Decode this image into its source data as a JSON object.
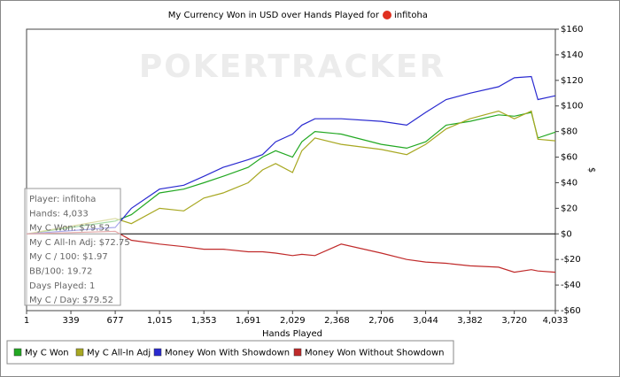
{
  "chart_data": {
    "type": "line",
    "title": "My Currency Won in USD over Hands Played for",
    "player": "infitoha",
    "watermark": "POKERTRACKER",
    "x_label": "Hands Played",
    "y_label": "$",
    "x": [
      1,
      677,
      800,
      1015,
      1200,
      1353,
      1500,
      1691,
      1800,
      1900,
      2029,
      2100,
      2200,
      2400,
      2706,
      2900,
      3044,
      3200,
      3382,
      3600,
      3720,
      3850,
      3900,
      4033
    ],
    "series": [
      {
        "name": "My C Won",
        "color": "#22a822",
        "values": [
          0,
          10,
          15,
          32,
          35,
          40,
          45,
          52,
          60,
          65,
          60,
          72,
          80,
          78,
          70,
          67,
          72,
          85,
          88,
          93,
          92,
          95,
          75,
          79.52
        ]
      },
      {
        "name": "My C All-In Adj",
        "color": "#a8a822",
        "values": [
          0,
          12,
          8,
          20,
          18,
          28,
          32,
          40,
          50,
          55,
          48,
          65,
          75,
          70,
          66,
          62,
          70,
          82,
          90,
          96,
          90,
          96,
          74,
          72.75
        ]
      },
      {
        "name": "Money Won With Showdown",
        "color": "#2a2ad0",
        "values": [
          0,
          5,
          20,
          35,
          38,
          45,
          52,
          58,
          62,
          72,
          78,
          85,
          90,
          90,
          88,
          85,
          95,
          105,
          110,
          115,
          122,
          123,
          105,
          108
        ]
      },
      {
        "name": "Money Won Without Showdown",
        "color": "#c02a2a",
        "values": [
          0,
          2,
          -5,
          -8,
          -10,
          -12,
          -12,
          -14,
          -14,
          -15,
          -17,
          -16,
          -17,
          -8,
          -15,
          -20,
          -22,
          -23,
          -25,
          -26,
          -30,
          -28,
          -29,
          -30
        ]
      }
    ],
    "xlim": [
      1,
      4033
    ],
    "xticks": [
      1,
      339,
      677,
      {
        "value": 1015,
        "label": "1,015"
      },
      {
        "value": 1353,
        "label": "1,353"
      },
      {
        "value": 1691,
        "label": "1,691"
      },
      {
        "value": 2029,
        "label": "2,029"
      },
      {
        "value": 2368,
        "label": "2,368"
      },
      {
        "value": 2706,
        "label": "2,706"
      },
      {
        "value": 3044,
        "label": "3,044"
      },
      {
        "value": 3382,
        "label": "3,382"
      },
      {
        "value": 3720,
        "label": "3,720"
      },
      {
        "value": 4033,
        "label": "4,033"
      }
    ],
    "ylim": [
      -60,
      160
    ],
    "yticks": [
      {
        "value": -60,
        "label": "-$60"
      },
      {
        "value": -40,
        "label": "-$40"
      },
      {
        "value": -20,
        "label": "-$20"
      },
      {
        "value": 0,
        "label": "$0"
      },
      {
        "value": 20,
        "label": "$20"
      },
      {
        "value": 40,
        "label": "$40"
      },
      {
        "value": 60,
        "label": "$60"
      },
      {
        "value": 80,
        "label": "$80"
      },
      {
        "value": 100,
        "label": "$100"
      },
      {
        "value": 120,
        "label": "$120"
      },
      {
        "value": 140,
        "label": "$140"
      },
      {
        "value": 160,
        "label": "$160"
      }
    ],
    "tooltip": [
      "Player: infitoha",
      "Hands: 4,033",
      "My C Won: $79.52",
      "My C All-In Adj: $72.75",
      "My C / 100: $1.97",
      "BB/100: 19.72",
      "Days Played: 1",
      "My C / Day: $79.52"
    ]
  }
}
